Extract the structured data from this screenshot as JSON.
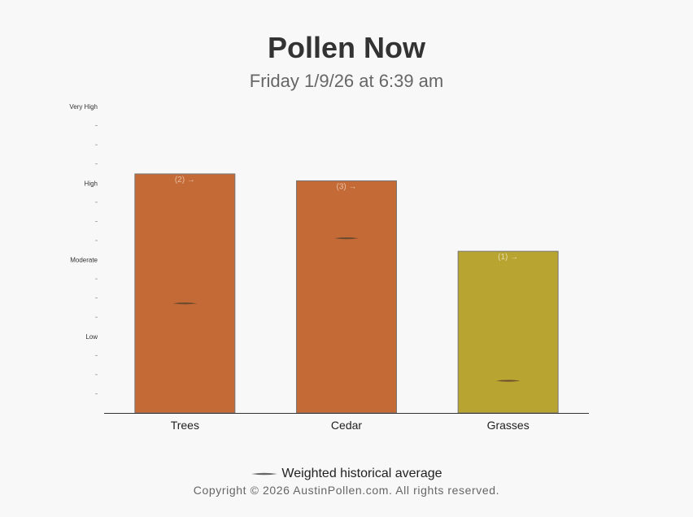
{
  "header": {
    "title": "Pollen Now",
    "subtitle": "Friday 1/9/26 at 6:39 am"
  },
  "chart_data": {
    "type": "bar",
    "title": "Pollen Now",
    "subtitle": "Friday 1/9/26 at 6:39 am",
    "xlabel": "",
    "ylabel": "",
    "y_levels": [
      {
        "label": "Low",
        "value": 1
      },
      {
        "label": "Moderate",
        "value": 2
      },
      {
        "label": "High",
        "value": 3
      },
      {
        "label": "Very High",
        "value": 4
      }
    ],
    "ylim": [
      0,
      4
    ],
    "minor_ticks_per_level": 4,
    "categories": [
      "Trees",
      "Cedar",
      "Grasses"
    ],
    "values": [
      3.12,
      3.03,
      2.11
    ],
    "weighted_historical_average": [
      1.43,
      2.28,
      0.42
    ],
    "bar_labels": [
      "(2) →",
      "(3) →",
      "(1) →"
    ],
    "bar_colors": [
      "#c46a37",
      "#c46a37",
      "#b8a430"
    ],
    "grid": false,
    "legend_position": "bottom"
  },
  "legend": {
    "label": "Weighted historical average"
  },
  "footer": {
    "copyright": "Copyright © 2026 AustinPollen.com.  All rights reserved."
  }
}
